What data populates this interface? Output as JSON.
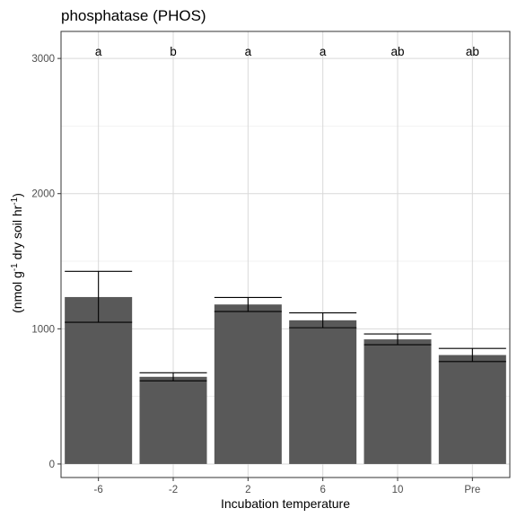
{
  "chart_data": {
    "type": "bar",
    "title": "phosphatase (PHOS)",
    "xlabel": "Incubation temperature",
    "ylabel": "(nmol g-1 dry soil hr-1)",
    "ylabel_parts": [
      "(nmol g",
      "-1",
      " dry soil hr",
      "-1",
      ")"
    ],
    "categories": [
      "-6",
      "-2",
      "2",
      "6",
      "10",
      "Pre"
    ],
    "values": [
      1235,
      645,
      1180,
      1063,
      922,
      806
    ],
    "error_low": [
      1048,
      615,
      1128,
      1008,
      882,
      758
    ],
    "error_high": [
      1425,
      675,
      1232,
      1118,
      962,
      855
    ],
    "significance": [
      "a",
      "b",
      "a",
      "a",
      "ab",
      "ab"
    ],
    "yticks": [
      0,
      1000,
      2000,
      3000
    ],
    "ytick_labels": [
      "0",
      "1000",
      "2000",
      "3000"
    ],
    "ylim": [
      -100,
      3200
    ],
    "grid": true,
    "bar_color": "#595959"
  }
}
